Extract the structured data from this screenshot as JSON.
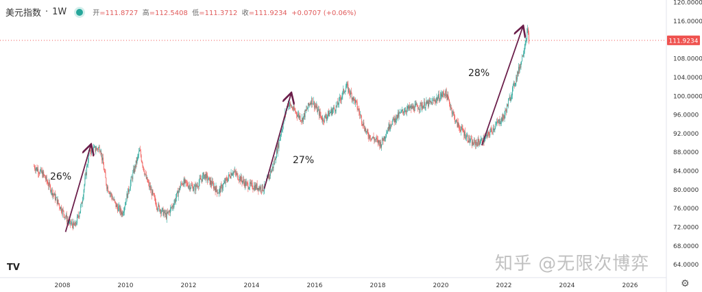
{
  "header": {
    "symbol": "美元指数",
    "interval": "1W",
    "open_label": "开",
    "open": "111.8727",
    "high_label": "高",
    "high": "112.5408",
    "low_label": "低",
    "low": "111.3712",
    "close_label": "收",
    "close": "111.9234",
    "change": "+0.0707",
    "change_pct": "(+0.06%)"
  },
  "watermark": "知乎 @无限次博弈",
  "logo": "TV",
  "colors": {
    "up": "#26a69a",
    "down": "#ef5350",
    "arrow": "#6b1e4a",
    "price_label": "#ef5350"
  },
  "chart_data": {
    "type": "candlestick",
    "title": "",
    "xlabel": "",
    "ylabel": "",
    "x_ticks": [
      "2008",
      "2010",
      "2012",
      "2014",
      "2016",
      "2018",
      "2020",
      "2022",
      "2024",
      "2026"
    ],
    "y_ticks": [
      "64.0000",
      "68.0000",
      "72.0000",
      "76.0000",
      "80.0000",
      "84.0000",
      "88.0000",
      "92.0000",
      "96.0000",
      "100.0000",
      "104.0000",
      "108.0000",
      "116.0000",
      "120.0000"
    ],
    "ylim": [
      64,
      120
    ],
    "xlim": [
      2006.6,
      2027.1
    ],
    "last_price": "111.9234",
    "grid": false,
    "approx_path": [
      [
        2007.1,
        85
      ],
      [
        2007.4,
        83.2
      ],
      [
        2007.8,
        78
      ],
      [
        2008.2,
        73
      ],
      [
        2008.4,
        72.2
      ],
      [
        2008.6,
        76.6
      ],
      [
        2008.85,
        88.3
      ],
      [
        2009.2,
        89
      ],
      [
        2009.4,
        81
      ],
      [
        2009.7,
        76.6
      ],
      [
        2009.9,
        75
      ],
      [
        2010.2,
        82.5
      ],
      [
        2010.45,
        88.3
      ],
      [
        2010.65,
        82.5
      ],
      [
        2011.0,
        76.6
      ],
      [
        2011.3,
        74.4
      ],
      [
        2011.5,
        76.6
      ],
      [
        2011.8,
        81.7
      ],
      [
        2012.2,
        80.3
      ],
      [
        2012.5,
        83.2
      ],
      [
        2012.95,
        79.5
      ],
      [
        2013.4,
        84
      ],
      [
        2013.85,
        81
      ],
      [
        2014.4,
        80.3
      ],
      [
        2014.7,
        85.4
      ],
      [
        2015.15,
        98.6
      ],
      [
        2015.6,
        95
      ],
      [
        2015.9,
        99.3
      ],
      [
        2016.25,
        95
      ],
      [
        2016.7,
        97.8
      ],
      [
        2017.0,
        102.2
      ],
      [
        2017.3,
        98.6
      ],
      [
        2017.65,
        92
      ],
      [
        2018.1,
        89.8
      ],
      [
        2018.4,
        94.2
      ],
      [
        2018.85,
        97.1
      ],
      [
        2019.3,
        97.8
      ],
      [
        2019.7,
        98.6
      ],
      [
        2020.15,
        100.8
      ],
      [
        2020.5,
        94.2
      ],
      [
        2021.0,
        89.8
      ],
      [
        2021.35,
        90.5
      ],
      [
        2021.7,
        93.5
      ],
      [
        2022.0,
        95.6
      ],
      [
        2022.35,
        103
      ],
      [
        2022.55,
        107.4
      ],
      [
        2022.75,
        114
      ],
      [
        2022.8,
        111.9
      ]
    ],
    "annotations": [
      {
        "text": "26%",
        "from": [
          2008.1,
          71
        ],
        "to": [
          2008.9,
          89.5
        ]
      },
      {
        "text": "27%",
        "from": [
          2014.4,
          80.2
        ],
        "to": [
          2015.25,
          100.5
        ]
      },
      {
        "text": "28%",
        "from": [
          2021.3,
          89.5
        ],
        "to": [
          2022.6,
          114.8
        ]
      }
    ]
  }
}
